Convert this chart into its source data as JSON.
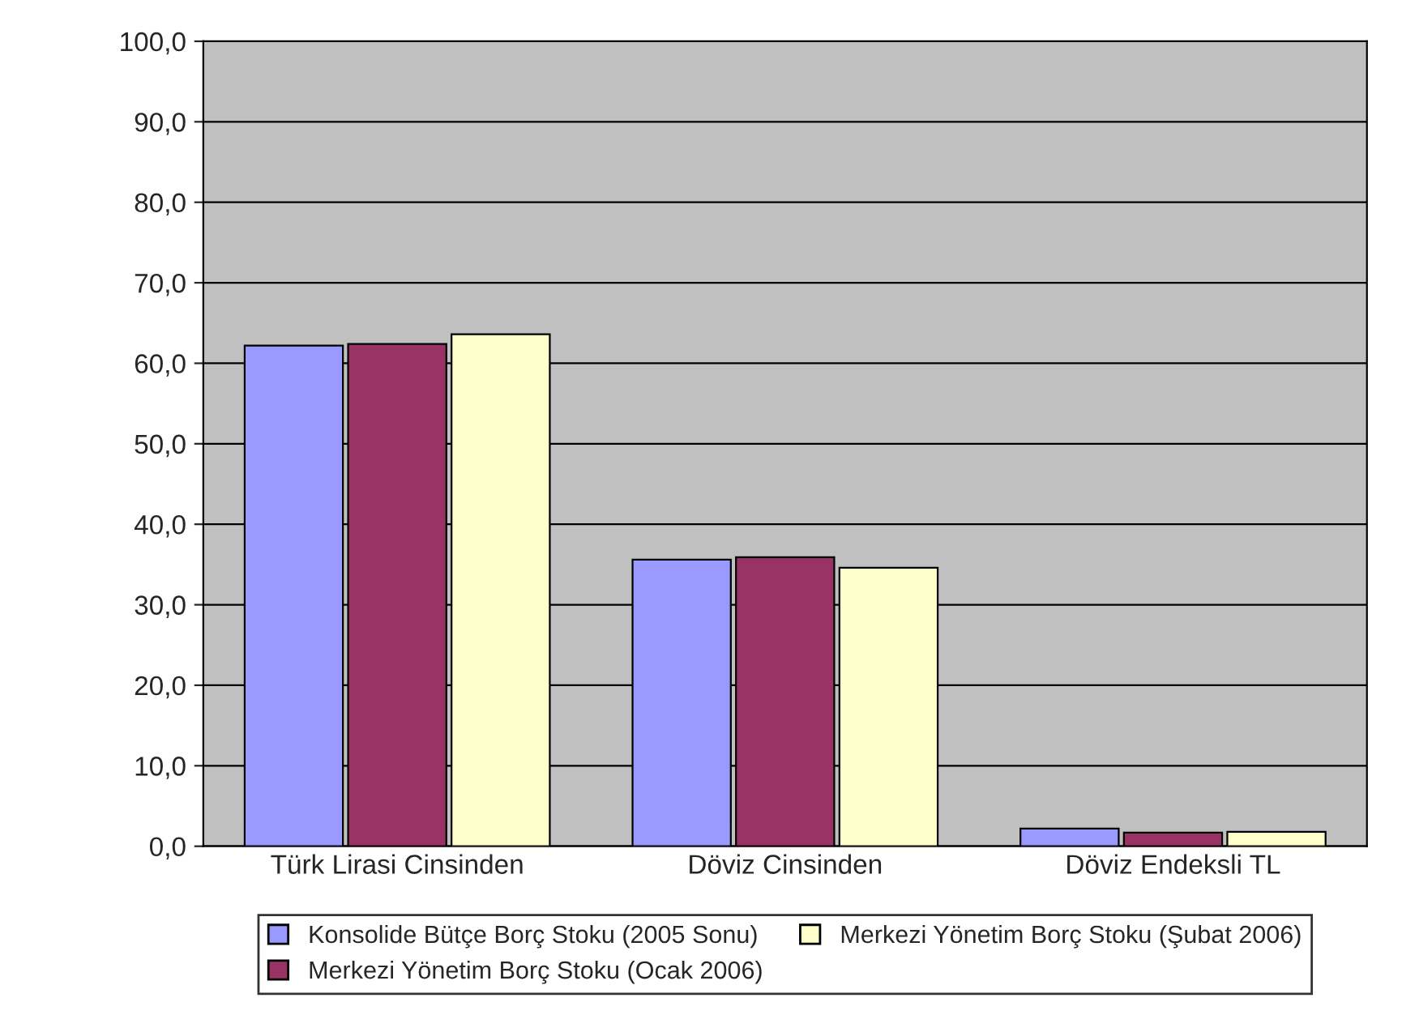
{
  "chart_data": {
    "type": "bar",
    "categories": [
      "Türk Lirasi Cinsinden",
      "Döviz Cinsinden",
      "Döviz Endeksli TL"
    ],
    "series": [
      {
        "name": "Konsolide Bütçe Borç Stoku (2005 Sonu)",
        "color": "#9999ff",
        "values": [
          62.2,
          35.6,
          2.2
        ]
      },
      {
        "name": "Merkezi Yönetim Borç Stoku (Ocak 2006)",
        "color": "#993366",
        "values": [
          62.4,
          35.9,
          1.7
        ]
      },
      {
        "name": "Merkezi Yönetim Borç Stoku (Şubat 2006)",
        "color": "#ffffcc",
        "values": [
          63.6,
          34.6,
          1.8
        ]
      }
    ],
    "ylim": [
      0,
      100
    ],
    "yticks": [
      {
        "value": 0,
        "label": "0,0"
      },
      {
        "value": 10,
        "label": "10,0"
      },
      {
        "value": 20,
        "label": "20,0"
      },
      {
        "value": 30,
        "label": "30,0"
      },
      {
        "value": 40,
        "label": "40,0"
      },
      {
        "value": 50,
        "label": "50,0"
      },
      {
        "value": 60,
        "label": "60,0"
      },
      {
        "value": 70,
        "label": "70,0"
      },
      {
        "value": 80,
        "label": "80,0"
      },
      {
        "value": 90,
        "label": "90,0"
      },
      {
        "value": 100,
        "label": "100,0"
      }
    ],
    "grid": "y",
    "legend": "bottom"
  }
}
